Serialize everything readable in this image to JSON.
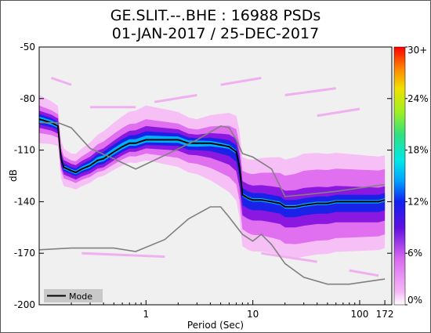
{
  "chart_data": {
    "type": "heatmap",
    "title": "GE.SLIT.--.BHE : 16988 PSDs",
    "subtitle": "01-JAN-2017 / 25-DEC-2017",
    "xlabel": "Period (Sec)",
    "ylabel": "dB",
    "x_scale": "log",
    "xlim": [
      0.1,
      200
    ],
    "ylim": [
      -200,
      -50
    ],
    "x_ticks": [
      {
        "value": 1,
        "label": "1"
      },
      {
        "value": 10,
        "label": "10"
      },
      {
        "value": 100,
        "label": "100"
      },
      {
        "value": 172,
        "label": "172"
      }
    ],
    "y_ticks": [
      {
        "value": -50,
        "label": "-50"
      },
      {
        "value": -80,
        "label": "-80"
      },
      {
        "value": -110,
        "label": "-110"
      },
      {
        "value": -140,
        "label": "-140"
      },
      {
        "value": -170,
        "label": "-170"
      },
      {
        "value": -200,
        "label": "-200"
      }
    ],
    "colorbar": {
      "ticks": [
        "0%",
        "6%",
        "12%",
        "18%",
        "24%",
        "30+"
      ],
      "colors": [
        "#ffffff",
        "#f4b0f4",
        "#d060e8",
        "#1010e0",
        "#00c8ff",
        "#20e0a0",
        "#e0f000",
        "#ff8000",
        "#ff0000"
      ]
    },
    "legend": {
      "entries": [
        "Mode"
      ],
      "placement": "bottom-left"
    },
    "series": [
      {
        "name": "Mode",
        "color": "#000000",
        "x": [
          0.1,
          0.13,
          0.15,
          0.16,
          0.17,
          0.2,
          0.22,
          0.25,
          0.3,
          0.35,
          0.4,
          0.5,
          0.6,
          0.7,
          0.8,
          1.0,
          1.2,
          1.5,
          2.0,
          2.5,
          3.0,
          4.0,
          5.0,
          6.0,
          7.0,
          7.5,
          8.0,
          9.0,
          10,
          12,
          15,
          18,
          20,
          25,
          30,
          40,
          50,
          60,
          80,
          100,
          120,
          150,
          172
        ],
        "y": [
          -92,
          -94,
          -96,
          -115,
          -120,
          -122,
          -123,
          -121,
          -119,
          -116,
          -115,
          -111,
          -108,
          -106,
          -106,
          -104,
          -104,
          -104,
          -104,
          -106,
          -106,
          -106,
          -107,
          -108,
          -111,
          -120,
          -136,
          -138,
          -139,
          -139,
          -140,
          -141,
          -143,
          -143,
          -142,
          -141,
          -141,
          -140,
          -140,
          -140,
          -140,
          -140,
          -139
        ]
      },
      {
        "name": "",
        "color": "#808080",
        "x": [
          0.1,
          0.15,
          0.2,
          0.3,
          0.5,
          0.8,
          1.5,
          3.0,
          5.0,
          6.0,
          7.0,
          8.0,
          10,
          15,
          20,
          30,
          60,
          100,
          172
        ],
        "y": [
          -94,
          -94,
          -97,
          -109,
          -115,
          -121,
          -113,
          -104,
          -96,
          -97,
          -104,
          -112,
          -114,
          -121,
          -137,
          -136,
          -134,
          -132,
          -130
        ]
      },
      {
        "name": "",
        "color": "#808080",
        "x": [
          0.1,
          0.2,
          0.3,
          0.5,
          0.8,
          1.5,
          2.5,
          4.0,
          5.0,
          6.0,
          8.0,
          10,
          12,
          15,
          20,
          30,
          50,
          80,
          172
        ],
        "y": [
          -168,
          -167,
          -167,
          -167,
          -169,
          -162,
          -150,
          -143,
          -143,
          -149,
          -159,
          -163,
          -159,
          -165,
          -176,
          -184,
          -188,
          -188,
          -185
        ]
      }
    ]
  }
}
